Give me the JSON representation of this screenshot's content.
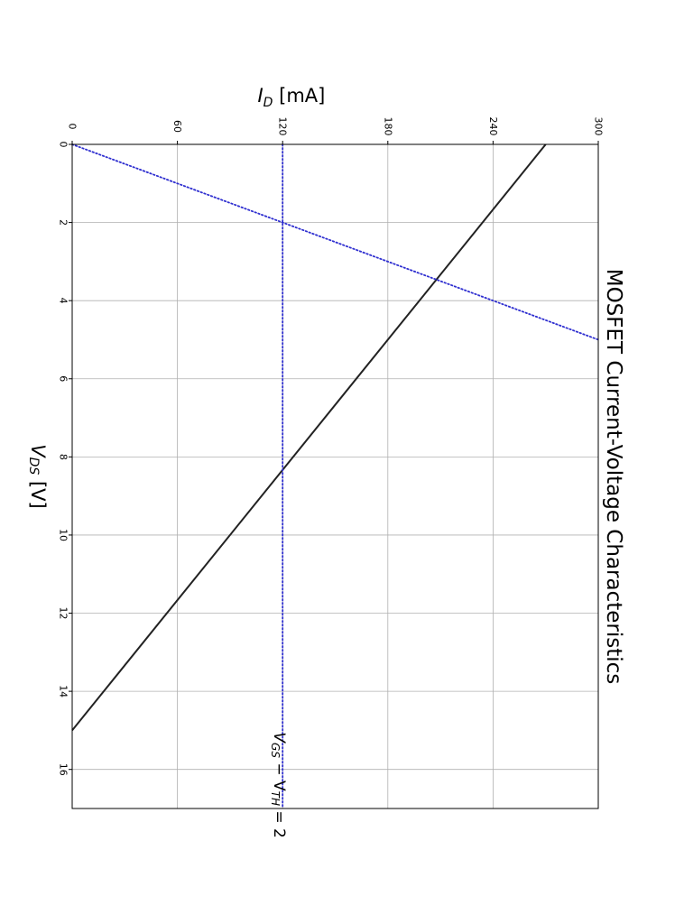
{
  "chart_data": {
    "type": "line",
    "title": "MOSFET Current-Voltage Characteristics",
    "xlabel": {
      "main": "V",
      "sub": "DS",
      "unit": " [V]"
    },
    "ylabel": {
      "main": "I",
      "sub": "D",
      "unit": " [mA]"
    },
    "xlim": [
      0,
      17
    ],
    "ylim": [
      0,
      300
    ],
    "xticks": [
      0,
      2,
      4,
      6,
      8,
      10,
      12,
      14,
      16
    ],
    "yticks": [
      0,
      60,
      120,
      180,
      240,
      300
    ],
    "grid": true,
    "orientation": "rotated-90-clockwise",
    "series": [
      {
        "style": "solid",
        "color": "#222222",
        "points": [
          [
            0,
            270
          ],
          [
            15,
            0
          ]
        ]
      },
      {
        "style": "dotted",
        "color": "#2f2fd0",
        "points": [
          [
            0,
            0
          ],
          [
            5,
            300
          ]
        ]
      },
      {
        "style": "dotted",
        "color": "#2f2fd0",
        "points": [
          [
            0,
            120
          ],
          [
            17,
            120
          ]
        ]
      }
    ],
    "annotations": [
      {
        "prefix": "V",
        "sub1": "GS",
        "mid": " − V",
        "sub2": "TH",
        "suffix": " = 2",
        "x": 15,
        "y": 120
      }
    ]
  }
}
